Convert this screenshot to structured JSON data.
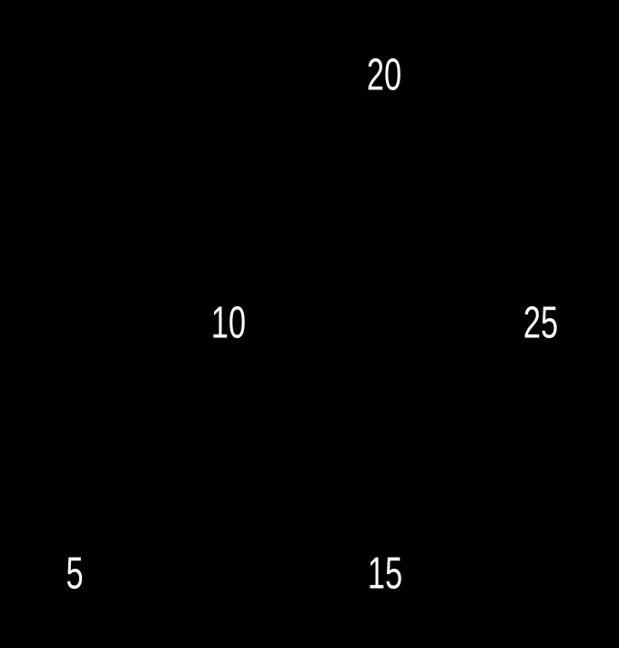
{
  "diagram": {
    "type": "binary-tree",
    "background_color": "#000000",
    "text_color": "#ffffff",
    "nodes": [
      {
        "value": "20"
      },
      {
        "value": "10"
      },
      {
        "value": "25"
      },
      {
        "value": "5"
      },
      {
        "value": "15"
      }
    ]
  }
}
